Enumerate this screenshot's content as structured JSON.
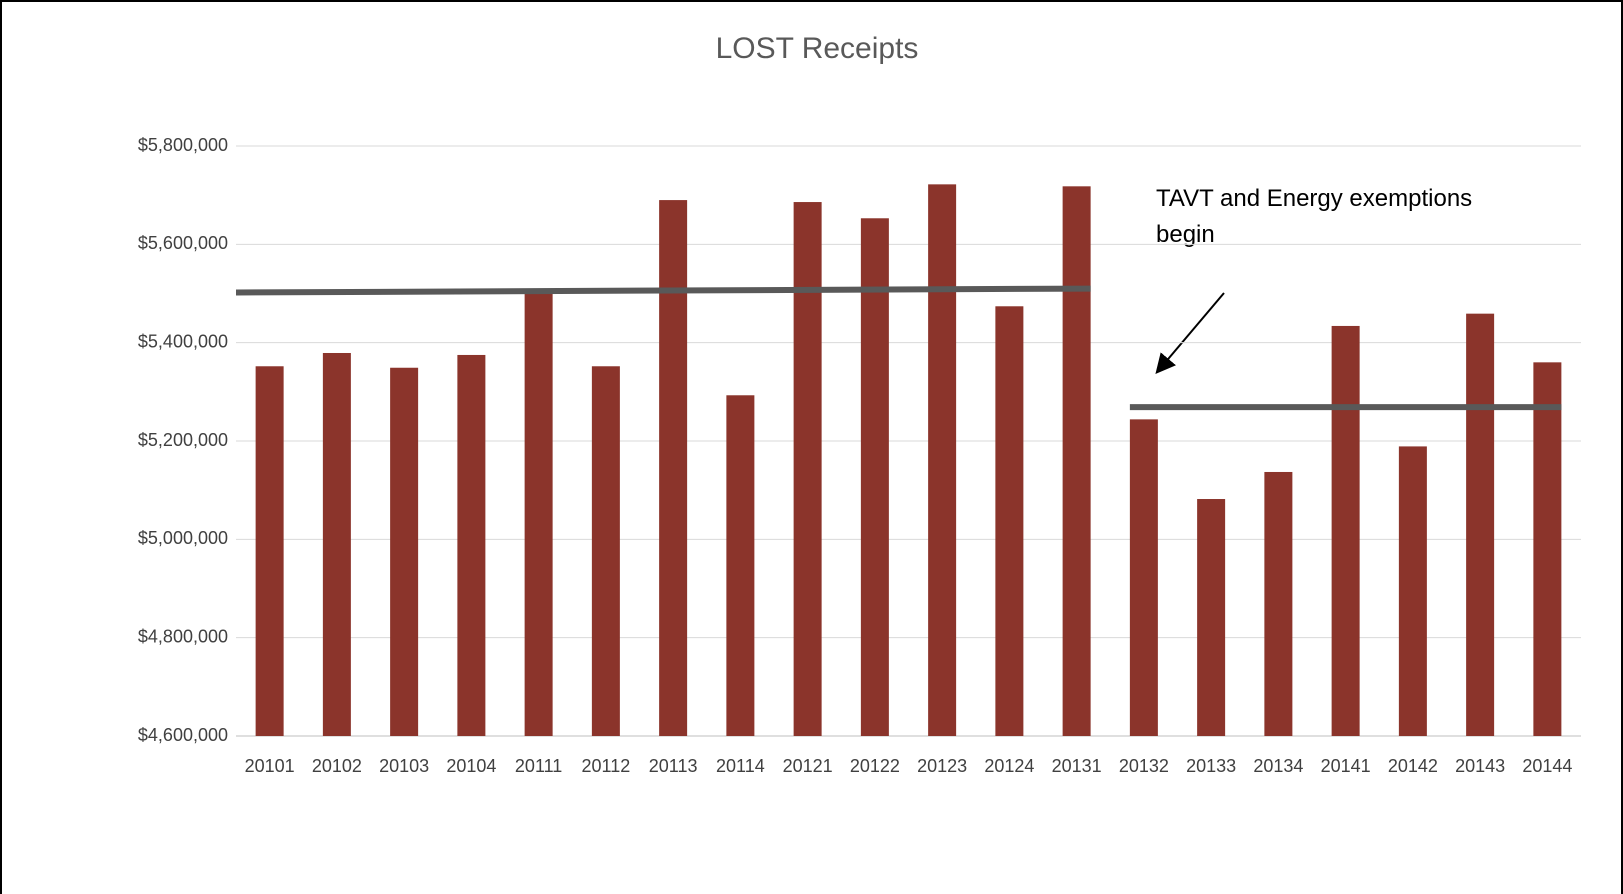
{
  "chart_data": {
    "type": "bar",
    "title": "LOST Receipts",
    "categories": [
      "20101",
      "20102",
      "20103",
      "20104",
      "20111",
      "20112",
      "20113",
      "20114",
      "20121",
      "20122",
      "20123",
      "20124",
      "20131",
      "20132",
      "20133",
      "20134",
      "20141",
      "20142",
      "20143",
      "20144"
    ],
    "values": [
      5352000,
      5379000,
      5349000,
      5375000,
      5501000,
      5352000,
      5690000,
      5293000,
      5686000,
      5653000,
      5722000,
      5474000,
      5718000,
      5244000,
      5082000,
      5137000,
      5434000,
      5189000,
      5459000,
      5360000
    ],
    "color": "#8b342b",
    "ylim": [
      4600000,
      5800000
    ],
    "yticks": [
      {
        "value": 4600000,
        "label": "$4,600,000"
      },
      {
        "value": 4800000,
        "label": "$4,800,000"
      },
      {
        "value": 5000000,
        "label": "$5,000,000"
      },
      {
        "value": 5200000,
        "label": "$5,200,000"
      },
      {
        "value": 5400000,
        "label": "$5,400,000"
      },
      {
        "value": 5600000,
        "label": "$5,600,000"
      },
      {
        "value": 5800000,
        "label": "$5,800,000"
      }
    ],
    "grid": true,
    "trend_lines": [
      {
        "from": "20101",
        "to": "20131",
        "values": [
          5502000,
          5510000
        ],
        "color": "#595959"
      },
      {
        "from": "20132",
        "to": "20144",
        "values": [
          5269000,
          5269000
        ],
        "color": "#595959"
      }
    ],
    "annotation": [
      "TAVT and Energy exemptions",
      "begin"
    ]
  }
}
